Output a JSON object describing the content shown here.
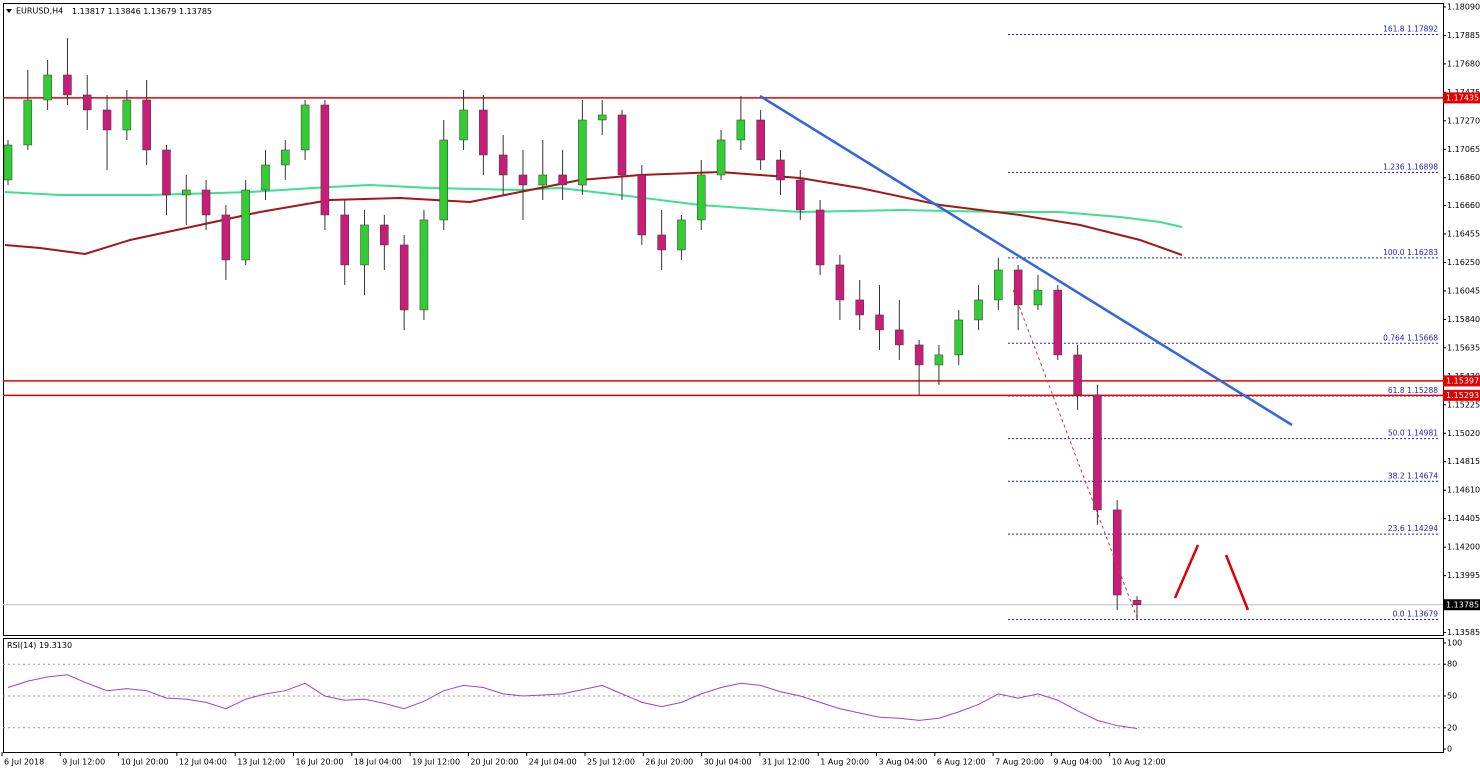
{
  "chart_data": {
    "type": "candlestick",
    "symbol": "EURUSD,H4",
    "ohlc": [
      [
        1.16844,
        1.17132,
        1.16808,
        1.17096
      ],
      [
        1.17096,
        1.17636,
        1.1706,
        1.1742
      ],
      [
        1.1742,
        1.17708,
        1.17348,
        1.176
      ],
      [
        1.176,
        1.17866,
        1.17384,
        1.17456
      ],
      [
        1.17456,
        1.176,
        1.17204,
        1.17348
      ],
      [
        1.17348,
        1.17456,
        1.16916,
        1.17204
      ],
      [
        1.17204,
        1.17492,
        1.17132,
        1.1742
      ],
      [
        1.1742,
        1.17564,
        1.16952,
        1.1706
      ],
      [
        1.1706,
        1.17096,
        1.16592,
        1.16736
      ],
      [
        1.16736,
        1.1688,
        1.1652,
        1.16772
      ],
      [
        1.16772,
        1.16844,
        1.16484,
        1.16592
      ],
      [
        1.16592,
        1.16664,
        1.16124,
        1.16268
      ],
      [
        1.16268,
        1.16844,
        1.16232,
        1.16772
      ],
      [
        1.16772,
        1.1706,
        1.167,
        1.16952
      ],
      [
        1.16952,
        1.17132,
        1.16844,
        1.1706
      ],
      [
        1.1706,
        1.1742,
        1.16988,
        1.17384
      ],
      [
        1.17384,
        1.1742,
        1.16484,
        1.16592
      ],
      [
        1.16592,
        1.167,
        1.16088,
        1.16232
      ],
      [
        1.16232,
        1.16628,
        1.16016,
        1.1652
      ],
      [
        1.1652,
        1.16592,
        1.16196,
        1.16376
      ],
      [
        1.16376,
        1.16448,
        1.15764,
        1.15908
      ],
      [
        1.15908,
        1.16628,
        1.15836,
        1.16556
      ],
      [
        1.16556,
        1.17276,
        1.16484,
        1.17132
      ],
      [
        1.17132,
        1.17492,
        1.1706,
        1.17348
      ],
      [
        1.17348,
        1.17456,
        1.1688,
        1.17024
      ],
      [
        1.17024,
        1.17168,
        1.16736,
        1.1688
      ],
      [
        1.1688,
        1.1706,
        1.16556,
        1.16808
      ],
      [
        1.16808,
        1.17132,
        1.167,
        1.1688
      ],
      [
        1.1688,
        1.1706,
        1.167,
        1.16808
      ],
      [
        1.16808,
        1.1742,
        1.16736,
        1.17276
      ],
      [
        1.17276,
        1.1742,
        1.17168,
        1.17312
      ],
      [
        1.17312,
        1.17348,
        1.167,
        1.1688
      ],
      [
        1.1688,
        1.16952,
        1.16376,
        1.16448
      ],
      [
        1.16448,
        1.16628,
        1.16196,
        1.1634
      ],
      [
        1.1634,
        1.16592,
        1.16268,
        1.16556
      ],
      [
        1.16556,
        1.16988,
        1.16484,
        1.1688
      ],
      [
        1.1688,
        1.17204,
        1.16844,
        1.17132
      ],
      [
        1.17132,
        1.17449,
        1.1706,
        1.17276
      ],
      [
        1.17276,
        1.17348,
        1.16916,
        1.16988
      ],
      [
        1.16988,
        1.1706,
        1.16736,
        1.16844
      ],
      [
        1.16844,
        1.16916,
        1.16556,
        1.16628
      ],
      [
        1.16628,
        1.167,
        1.1616,
        1.16232
      ],
      [
        1.16232,
        1.16304,
        1.15836,
        1.1598
      ],
      [
        1.1598,
        1.16124,
        1.15764,
        1.15872
      ],
      [
        1.15872,
        1.16088,
        1.1562,
        1.15764
      ],
      [
        1.15764,
        1.1598,
        1.15548,
        1.15656
      ],
      [
        1.15656,
        1.15692,
        1.15296,
        1.15512
      ],
      [
        1.15512,
        1.15656,
        1.15368,
        1.15584
      ],
      [
        1.15584,
        1.15908,
        1.15512,
        1.15836
      ],
      [
        1.15836,
        1.16088,
        1.15764,
        1.1598
      ],
      [
        1.1598,
        1.16282,
        1.15908,
        1.16196
      ],
      [
        1.16196,
        1.16232,
        1.15764,
        1.15944
      ],
      [
        1.15944,
        1.1616,
        1.15908,
        1.16051
      ],
      [
        1.16051,
        1.16088,
        1.15548,
        1.15584
      ],
      [
        1.15584,
        1.15656,
        1.15188,
        1.15296
      ],
      [
        1.15296,
        1.15368,
        1.1436,
        1.14468
      ],
      [
        1.14468,
        1.1454,
        1.13747,
        1.13855
      ],
      [
        1.13817,
        1.13846,
        1.13679,
        1.13785
      ]
    ],
    "bull_color": "#32cd32",
    "bear_color": "#c81e78",
    "ylim": [
      1.1356,
      1.1814
    ],
    "yticks": [
      {
        "value": 1.1809,
        "label": "1.18090"
      },
      1.17885,
      {
        "value": 1.1768,
        "label": "1.17680"
      },
      1.17475,
      {
        "value": 1.1727,
        "label": "1.17270"
      },
      1.17065,
      {
        "value": 1.1686,
        "label": "1.16860"
      },
      {
        "value": 1.1666,
        "label": "1.16660"
      },
      1.16455,
      {
        "value": 1.1625,
        "label": "1.16250"
      },
      1.16045,
      {
        "value": 1.1584,
        "label": "1.15840"
      },
      1.15635,
      {
        "value": 1.1543,
        "label": "1.15430"
      },
      1.15225,
      {
        "value": 1.1502,
        "label": "1.15020"
      },
      1.14815,
      {
        "value": 1.1461,
        "label": "1.14610"
      },
      1.14405,
      {
        "value": 1.142,
        "label": "1.14200"
      },
      1.13995,
      1.13585
    ],
    "levels": [
      1.17435,
      1.15397,
      1.15293
    ],
    "level_color": "#e00000",
    "fibonacci": [
      {
        "level": "161.8",
        "value": 1.17892
      },
      {
        "level": "1.236",
        "value": 1.16898
      },
      {
        "level": "100.0",
        "value": 1.16283
      },
      {
        "level": "0.764",
        "value": 1.15668
      },
      {
        "level": "61.8",
        "value": 1.15288
      },
      {
        "level": "50.0",
        "value": 1.14981
      },
      {
        "level": "38.2",
        "value": 1.14674
      },
      {
        "level": "23.6",
        "value": 1.14294
      },
      {
        "level": "0.0",
        "value": 1.13679
      }
    ],
    "fib_color": "#2020c0",
    "x_labels": [
      "6 Jul 2018",
      "9 Jul 12:00",
      "10 Jul 20:00",
      "12 Jul 04:00",
      "13 Jul 12:00",
      "16 Jul 20:00",
      "18 Jul 04:00",
      "19 Jul 12:00",
      "20 Jul 20:00",
      "24 Jul 04:00",
      "25 Jul 12:00",
      "26 Jul 20:00",
      "30 Jul 04:00",
      "31 Jul 12:00",
      "1 Aug 20:00",
      "3 Aug 04:00",
      "6 Aug 12:00",
      "7 Aug 20:00",
      "9 Aug 04:00",
      "10 Aug 12:00"
    ],
    "rsi": {
      "label": "RSI(14)",
      "current": {
        "value": 19.313,
        "label": "19.3130"
      },
      "values": [
        58,
        64,
        68,
        70,
        62,
        55,
        57,
        55,
        48,
        47,
        44,
        38,
        47,
        52,
        55,
        62,
        50,
        46,
        47,
        43,
        38,
        45,
        55,
        60,
        58,
        52,
        50,
        51,
        52,
        56,
        60,
        52,
        44,
        40,
        44,
        52,
        58,
        62,
        60,
        54,
        50,
        44,
        38,
        34,
        30,
        29,
        27,
        29,
        35,
        42,
        52,
        48,
        52,
        46,
        36,
        27,
        22,
        19.313
      ],
      "ylim": [
        0,
        100
      ],
      "yticks": [
        100,
        80,
        50,
        20,
        0
      ],
      "color": "#a040d0"
    }
  }
}
